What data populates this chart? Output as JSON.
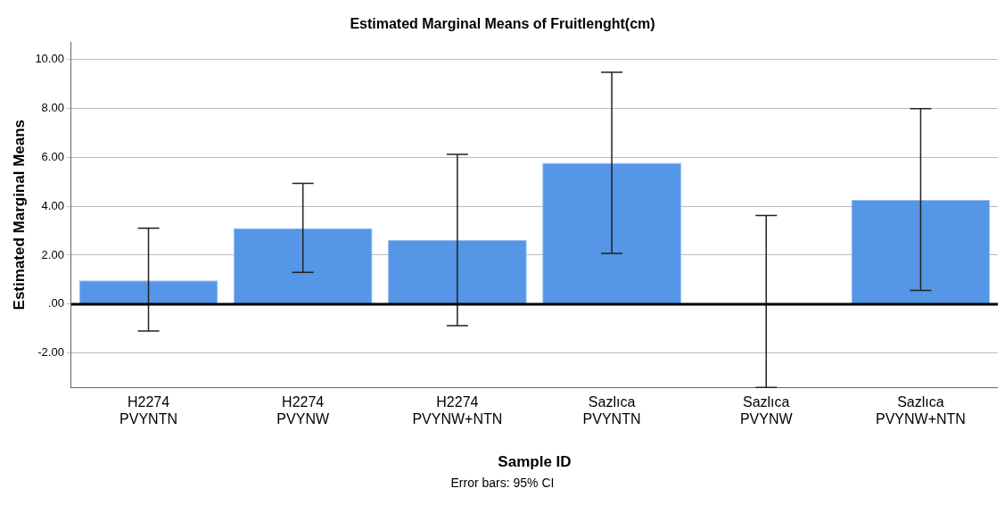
{
  "chart_data": {
    "type": "bar",
    "title": "Estimated Marginal Means of Fruitlenght(cm)",
    "xlabel": "Sample ID",
    "ylabel": "Estimated Marginal Means",
    "categories": [
      "H2274\nPVYNTN",
      "H2274\nPVYNW",
      "H2274\nPVYNW+NTN",
      "Sazlıca\nPVYNTN",
      "Sazlıca\nPVYNW",
      "Sazlıca\nPVYNW+NTN"
    ],
    "values": [
      0.97,
      3.1,
      2.62,
      5.77,
      0,
      4.26
    ],
    "color": "#5596e6",
    "errors": [
      [
        -1.1,
        3.1
      ],
      [
        1.3,
        4.93
      ],
      [
        -0.88,
        6.12
      ],
      [
        2.07,
        9.47
      ],
      [
        -3.4,
        3.62
      ],
      [
        0.56,
        7.98
      ]
    ],
    "ylim": [
      -3.4,
      10.7
    ],
    "yticks": [
      {
        "value": -2,
        "label": "-2.00"
      },
      {
        "value": 0,
        "label": ".00"
      },
      {
        "value": 2,
        "label": "2.00"
      },
      {
        "value": 4,
        "label": "4.00"
      },
      {
        "value": 6,
        "label": "6.00"
      },
      {
        "value": 8,
        "label": "8.00"
      },
      {
        "value": 10,
        "label": "10.00"
      }
    ],
    "grid": "y",
    "legend": false,
    "ref_lines": [
      {
        "axis": "y",
        "value": 0,
        "color": "#000000"
      }
    ],
    "annotations": [
      "Error bars: 95% CI"
    ]
  }
}
